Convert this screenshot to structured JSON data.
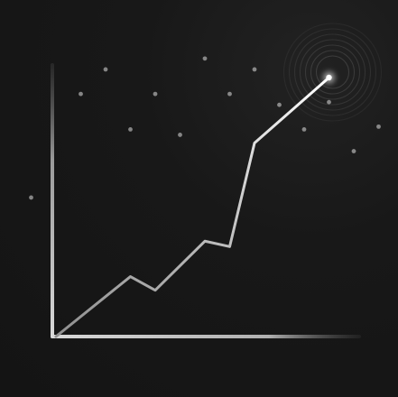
{
  "chart_data": {
    "type": "line",
    "title": "",
    "xlabel": "",
    "ylabel": "",
    "grid": false,
    "legend": "none",
    "xlim": [
      0,
      11
    ],
    "ylim": [
      0,
      100
    ],
    "series": [
      {
        "values": [
          {
            "x": 0,
            "y": 0
          },
          {
            "x": 3,
            "y": 22
          },
          {
            "x": 4,
            "y": 17
          },
          {
            "x": 6,
            "y": 35
          },
          {
            "x": 7,
            "y": 33
          },
          {
            "x": 8,
            "y": 71
          },
          {
            "x": 11,
            "y": 95
          }
        ]
      }
    ],
    "decorative_columns": [
      {
        "x": -1,
        "y": 51
      },
      {
        "x": 1,
        "y": 89
      },
      {
        "x": 2,
        "y": 98
      },
      {
        "x": 3,
        "y": 76
      },
      {
        "x": 4,
        "y": 89
      },
      {
        "x": 5,
        "y": 74
      },
      {
        "x": 6,
        "y": 102
      },
      {
        "x": 7,
        "y": 89
      },
      {
        "x": 8,
        "y": 98
      },
      {
        "x": 9,
        "y": 85
      },
      {
        "x": 10,
        "y": 76
      },
      {
        "x": 11,
        "y": 86
      },
      {
        "x": 12,
        "y": 68
      },
      {
        "x": 13,
        "y": 77
      }
    ],
    "colors": {
      "background": "#161616",
      "axis": "#cfcfcf",
      "line_start": "#8f8f8f",
      "line_end": "#ffffff",
      "column": "#b7b7b7",
      "column_cap": "#e0e0e0"
    }
  }
}
